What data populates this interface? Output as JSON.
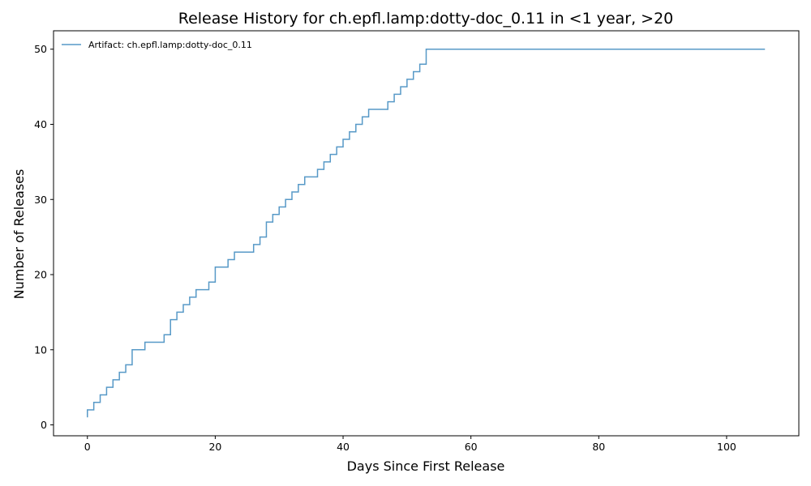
{
  "chart_data": {
    "type": "line",
    "step": true,
    "title": "Release History for ch.epfl.lamp:dotty-doc_0.11 in <1 year, >20",
    "xlabel": "Days Since First Release",
    "ylabel": "Number of Releases",
    "xlim": [
      -5.3,
      111.3
    ],
    "ylim": [
      -1.45,
      52.45
    ],
    "xticks": [
      0,
      20,
      40,
      60,
      80,
      100
    ],
    "yticks": [
      0,
      10,
      20,
      30,
      40,
      50
    ],
    "grid": false,
    "legend": {
      "placement": "top-left"
    },
    "series": [
      {
        "name": "Artifact: ch.epfl.lamp:dotty-doc_0.11",
        "color": "#1f77b4",
        "points": [
          [
            0,
            1
          ],
          [
            0,
            2
          ],
          [
            1,
            3
          ],
          [
            2,
            4
          ],
          [
            3,
            5
          ],
          [
            4,
            6
          ],
          [
            5,
            7
          ],
          [
            6,
            8
          ],
          [
            7,
            10
          ],
          [
            9,
            11
          ],
          [
            12,
            12
          ],
          [
            13,
            14
          ],
          [
            14,
            15
          ],
          [
            15,
            16
          ],
          [
            16,
            17
          ],
          [
            17,
            18
          ],
          [
            19,
            19
          ],
          [
            20,
            21
          ],
          [
            22,
            22
          ],
          [
            23,
            23
          ],
          [
            26,
            24
          ],
          [
            27,
            25
          ],
          [
            28,
            27
          ],
          [
            29,
            28
          ],
          [
            30,
            29
          ],
          [
            31,
            30
          ],
          [
            32,
            31
          ],
          [
            33,
            32
          ],
          [
            34,
            33
          ],
          [
            36,
            34
          ],
          [
            37,
            35
          ],
          [
            38,
            36
          ],
          [
            39,
            37
          ],
          [
            40,
            38
          ],
          [
            41,
            39
          ],
          [
            42,
            40
          ],
          [
            43,
            41
          ],
          [
            44,
            42
          ],
          [
            47,
            43
          ],
          [
            48,
            44
          ],
          [
            49,
            45
          ],
          [
            50,
            46
          ],
          [
            51,
            47
          ],
          [
            52,
            48
          ],
          [
            53,
            50
          ],
          [
            106,
            50
          ]
        ]
      }
    ]
  }
}
